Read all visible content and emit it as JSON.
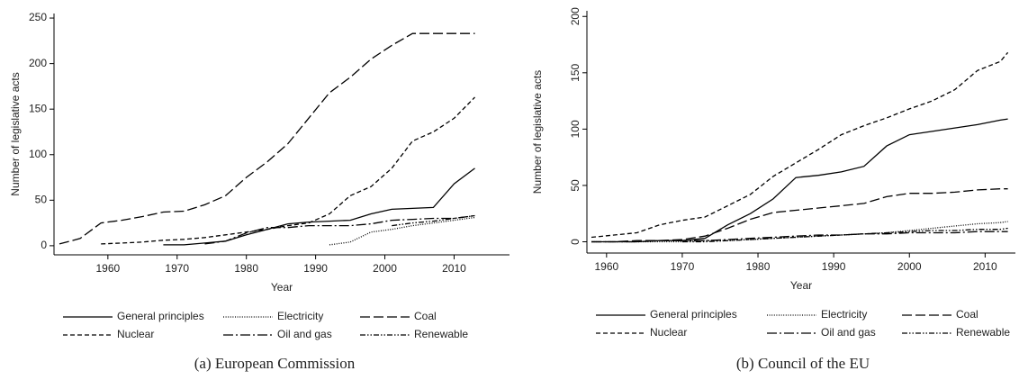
{
  "chart_data": [
    {
      "type": "line",
      "title": "(a) European Commission",
      "x_label": "Year",
      "y_label": "Number of legislative acts",
      "x": [
        1953,
        1956,
        1959,
        1962,
        1965,
        1968,
        1971,
        1974,
        1977,
        1980,
        1983,
        1986,
        1989,
        1992,
        1995,
        1998,
        2001,
        2004,
        2007,
        2010,
        2013
      ],
      "xlim": [
        1953,
        2018
      ],
      "xticks": [
        1960,
        1970,
        1980,
        1990,
        2000,
        2010
      ],
      "ylim": [
        -10,
        255
      ],
      "yticks": [
        0,
        50,
        100,
        150,
        200,
        250
      ],
      "grid": false,
      "series": [
        {
          "name": "General principles",
          "color": "#000000",
          "dash": "solid",
          "values": [
            null,
            null,
            null,
            null,
            null,
            1,
            1,
            3,
            5,
            12,
            18,
            24,
            26,
            27,
            28,
            35,
            40,
            41,
            42,
            68,
            85
          ]
        },
        {
          "name": "Electricity",
          "color": "#000000",
          "dash": "dotted",
          "values": [
            null,
            null,
            null,
            null,
            null,
            null,
            null,
            null,
            null,
            null,
            null,
            null,
            null,
            1,
            4,
            15,
            18,
            22,
            25,
            28,
            31
          ]
        },
        {
          "name": "Coal",
          "color": "#000000",
          "dash": "longdash",
          "values": [
            2,
            8,
            25,
            28,
            32,
            37,
            38,
            45,
            55,
            75,
            92,
            112,
            140,
            168,
            185,
            205,
            220,
            233,
            233,
            233,
            233
          ]
        },
        {
          "name": "Nuclear",
          "color": "#000000",
          "dash": "dash",
          "values": [
            null,
            null,
            2,
            3,
            4,
            6,
            7,
            9,
            12,
            15,
            18,
            22,
            25,
            35,
            55,
            65,
            85,
            115,
            125,
            140,
            163
          ]
        },
        {
          "name": "Oil and gas",
          "color": "#000000",
          "dash": "longdashdot",
          "values": [
            null,
            null,
            null,
            null,
            null,
            null,
            null,
            2,
            5,
            14,
            20,
            20,
            22,
            22,
            22,
            24,
            28,
            29,
            30,
            30,
            33
          ]
        },
        {
          "name": "Renewable",
          "color": "#000000",
          "dash": "dashdotdot",
          "values": [
            null,
            null,
            null,
            null,
            null,
            null,
            null,
            null,
            null,
            null,
            null,
            null,
            null,
            null,
            null,
            null,
            22,
            25,
            27,
            30,
            33
          ]
        }
      ]
    },
    {
      "type": "line",
      "title": "(b) Council of the EU",
      "x_label": "Year",
      "y_label": "Number of legislative acts",
      "x": [
        1958,
        1961,
        1964,
        1967,
        1970,
        1973,
        1976,
        1979,
        1982,
        1985,
        1988,
        1991,
        1994,
        1997,
        2000,
        2003,
        2006,
        2009,
        2012,
        2013
      ],
      "xlim": [
        1958,
        2014
      ],
      "xticks": [
        1960,
        1970,
        1980,
        1990,
        2000,
        2010
      ],
      "ylim": [
        -10,
        205
      ],
      "yticks": [
        0,
        50,
        100,
        150,
        200
      ],
      "grid": false,
      "series": [
        {
          "name": "General principles",
          "color": "#000000",
          "dash": "solid",
          "values": [
            0,
            0,
            0,
            1,
            1,
            3,
            15,
            25,
            38,
            57,
            59,
            62,
            67,
            85,
            95,
            98,
            101,
            104,
            108,
            109
          ]
        },
        {
          "name": "Electricity",
          "color": "#000000",
          "dash": "dotted",
          "values": [
            0,
            0,
            0,
            0,
            0,
            1,
            1,
            2,
            3,
            4,
            5,
            6,
            7,
            8,
            10,
            12,
            14,
            16,
            17,
            18
          ]
        },
        {
          "name": "Coal",
          "color": "#000000",
          "dash": "longdash",
          "values": [
            0,
            0,
            1,
            1,
            2,
            5,
            12,
            20,
            26,
            28,
            30,
            32,
            34,
            40,
            43,
            43,
            44,
            46,
            47,
            47
          ]
        },
        {
          "name": "Nuclear",
          "color": "#000000",
          "dash": "dash",
          "values": [
            4,
            6,
            8,
            15,
            19,
            22,
            32,
            42,
            58,
            70,
            82,
            95,
            103,
            110,
            118,
            125,
            135,
            152,
            160,
            168
          ]
        },
        {
          "name": "Oil and gas",
          "color": "#000000",
          "dash": "longdashdot",
          "values": [
            0,
            0,
            0,
            1,
            1,
            1,
            2,
            3,
            4,
            5,
            6,
            6,
            7,
            7,
            8,
            8,
            8,
            9,
            9,
            9
          ]
        },
        {
          "name": "Renewable",
          "color": "#000000",
          "dash": "dashdotdot",
          "values": [
            null,
            null,
            null,
            null,
            0,
            0,
            1,
            2,
            3,
            4,
            5,
            6,
            7,
            8,
            9,
            10,
            10,
            11,
            11,
            12
          ]
        }
      ]
    }
  ]
}
